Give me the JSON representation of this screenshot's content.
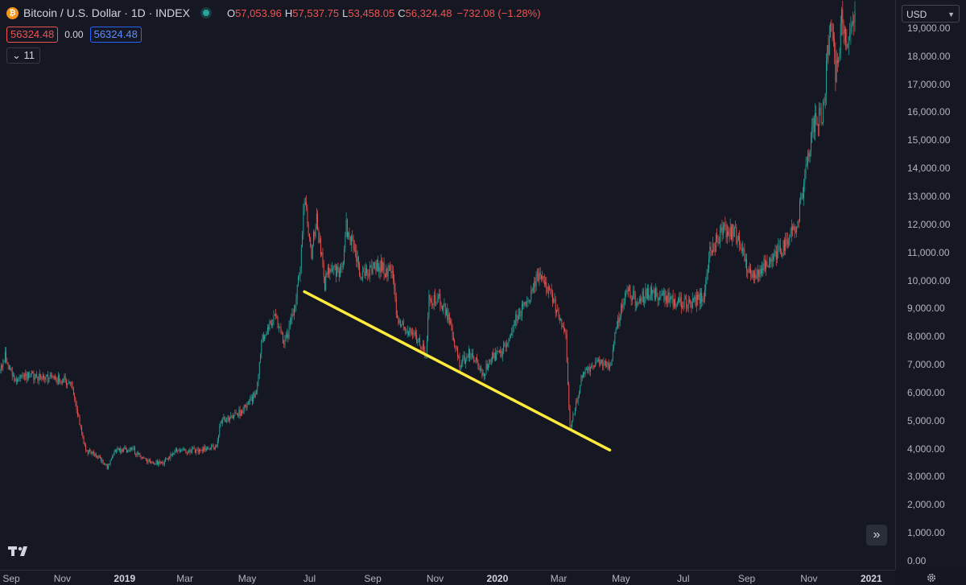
{
  "header": {
    "symbol_title": "Bitcoin / U.S. Dollar · 1D · INDEX",
    "btc_icon_glyph": "₿",
    "ohlc": {
      "open_label": "O",
      "open": "57,053.96",
      "high_label": "H",
      "high": "57,537.75",
      "low_label": "L",
      "low": "53,458.05",
      "close_label": "C",
      "close": "56,324.48"
    },
    "change": "−732.08 (−1.28%)",
    "bid": "56324.48",
    "spread": "0.00",
    "ask": "56324.48",
    "indicators_toggle": "⌄ 11"
  },
  "price_axis": {
    "currency": "USD",
    "labels": [
      "19,000.00",
      "18,000.00",
      "17,000.00",
      "16,000.00",
      "15,000.00",
      "14,000.00",
      "13,000.00",
      "12,000.00",
      "11,000.00",
      "10,000.00",
      "9,000.00",
      "8,000.00",
      "7,000.00",
      "6,000.00",
      "5,000.00",
      "4,000.00",
      "3,000.00",
      "2,000.00",
      "1,000.00",
      "0.00"
    ]
  },
  "time_axis": {
    "labels": [
      {
        "text": "Sep",
        "year": false
      },
      {
        "text": "Nov",
        "year": false
      },
      {
        "text": "2019",
        "year": true
      },
      {
        "text": "Mar",
        "year": false
      },
      {
        "text": "May",
        "year": false
      },
      {
        "text": "Jul",
        "year": false
      },
      {
        "text": "Sep",
        "year": false
      },
      {
        "text": "Nov",
        "year": false
      },
      {
        "text": "2020",
        "year": true
      },
      {
        "text": "Mar",
        "year": false
      },
      {
        "text": "May",
        "year": false
      },
      {
        "text": "Jul",
        "year": false
      },
      {
        "text": "Sep",
        "year": false
      },
      {
        "text": "Nov",
        "year": false
      },
      {
        "text": "2021",
        "year": true
      }
    ]
  },
  "colors": {
    "up": "#26a69a",
    "down": "#ef5350",
    "trendline": "#ffeb3b",
    "background": "#151823"
  },
  "icons": {
    "scroll_right": "»",
    "logo": "tradingview-logo-icon",
    "settings": "gear-icon"
  },
  "chart_data": {
    "type": "candlestick",
    "ylim": [
      0,
      20200
    ],
    "x_range": [
      "2018-09-01",
      "2020-12-16"
    ],
    "anchors": [
      [
        "2018-09-01",
        6800
      ],
      [
        "2018-09-06",
        7300
      ],
      [
        "2018-09-15",
        6500
      ],
      [
        "2018-10-01",
        6600
      ],
      [
        "2018-10-20",
        6500
      ],
      [
        "2018-11-10",
        6400
      ],
      [
        "2018-11-14",
        5600
      ],
      [
        "2018-11-20",
        4500
      ],
      [
        "2018-11-25",
        3900
      ],
      [
        "2018-12-05",
        3800
      ],
      [
        "2018-12-15",
        3300
      ],
      [
        "2018-12-22",
        3900
      ],
      [
        "2019-01-08",
        4000
      ],
      [
        "2019-01-20",
        3600
      ],
      [
        "2019-02-07",
        3450
      ],
      [
        "2019-02-20",
        3900
      ],
      [
        "2019-03-15",
        3950
      ],
      [
        "2019-04-01",
        4100
      ],
      [
        "2019-04-05",
        5000
      ],
      [
        "2019-04-25",
        5300
      ],
      [
        "2019-05-10",
        6000
      ],
      [
        "2019-05-15",
        7900
      ],
      [
        "2019-05-28",
        8700
      ],
      [
        "2019-06-05",
        7800
      ],
      [
        "2019-06-10",
        8000
      ],
      [
        "2019-06-17",
        9300
      ],
      [
        "2019-06-22",
        10700
      ],
      [
        "2019-06-26",
        12900
      ],
      [
        "2019-07-03",
        11000
      ],
      [
        "2019-07-08",
        12200
      ],
      [
        "2019-07-16",
        9900
      ],
      [
        "2019-07-20",
        10500
      ],
      [
        "2019-08-02",
        10300
      ],
      [
        "2019-08-06",
        11900
      ],
      [
        "2019-08-12",
        11300
      ],
      [
        "2019-08-20",
        10200
      ],
      [
        "2019-09-05",
        10600
      ],
      [
        "2019-09-20",
        10200
      ],
      [
        "2019-09-25",
        8500
      ],
      [
        "2019-10-08",
        8200
      ],
      [
        "2019-10-23",
        7400
      ],
      [
        "2019-10-26",
        9300
      ],
      [
        "2019-11-05",
        9300
      ],
      [
        "2019-11-15",
        8600
      ],
      [
        "2019-11-25",
        7000
      ],
      [
        "2019-12-05",
        7400
      ],
      [
        "2019-12-18",
        6700
      ],
      [
        "2019-12-28",
        7300
      ],
      [
        "2020-01-05",
        7400
      ],
      [
        "2020-01-20",
        8700
      ],
      [
        "2020-02-01",
        9400
      ],
      [
        "2020-02-12",
        10300
      ],
      [
        "2020-02-20",
        9600
      ],
      [
        "2020-03-01",
        8800
      ],
      [
        "2020-03-08",
        7900
      ],
      [
        "2020-03-12",
        4800
      ],
      [
        "2020-03-16",
        5200
      ],
      [
        "2020-03-24",
        6700
      ],
      [
        "2020-04-06",
        7100
      ],
      [
        "2020-04-20",
        6900
      ],
      [
        "2020-04-29",
        8700
      ],
      [
        "2020-05-07",
        9700
      ],
      [
        "2020-05-15",
        9300
      ],
      [
        "2020-06-01",
        9600
      ],
      [
        "2020-06-20",
        9300
      ],
      [
        "2020-07-10",
        9200
      ],
      [
        "2020-07-22",
        9500
      ],
      [
        "2020-07-27",
        11000
      ],
      [
        "2020-08-10",
        11800
      ],
      [
        "2020-08-20",
        11700
      ],
      [
        "2020-09-04",
        10300
      ],
      [
        "2020-09-10",
        10300
      ],
      [
        "2020-09-25",
        10700
      ],
      [
        "2020-10-10",
        11300
      ],
      [
        "2020-10-20",
        12000
      ],
      [
        "2020-10-25",
        13000
      ],
      [
        "2020-11-05",
        15500
      ],
      [
        "2020-11-15",
        16000
      ],
      [
        "2020-11-20",
        18500
      ],
      [
        "2020-11-25",
        19000
      ],
      [
        "2020-11-27",
        17200
      ],
      [
        "2020-12-03",
        19200
      ],
      [
        "2020-12-10",
        18300
      ],
      [
        "2020-12-16",
        19500
      ]
    ],
    "trendline": {
      "start": [
        "2019-06-26",
        9600
      ],
      "end": [
        "2020-04-20",
        3950
      ]
    },
    "last_price": 56324.48
  }
}
